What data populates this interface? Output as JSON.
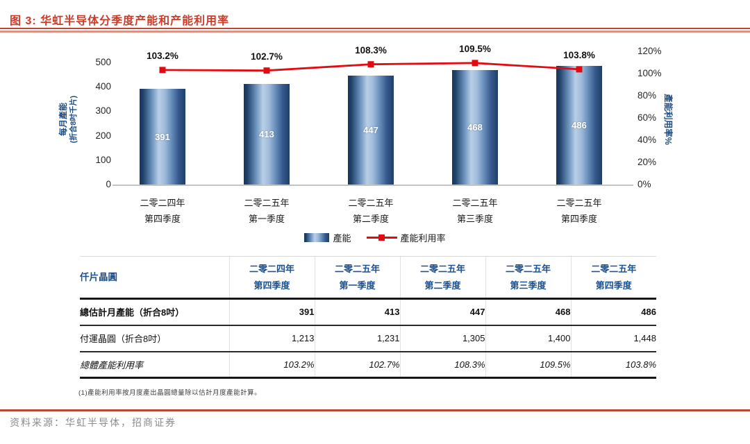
{
  "title": "图 3: 华虹半导体分季度产能和产能利用率",
  "chart_data": {
    "type": "bar",
    "categories": [
      [
        "二零二四年",
        "第四季度"
      ],
      [
        "二零二五年",
        "第一季度"
      ],
      [
        "二零二五年",
        "第二季度"
      ],
      [
        "二零二五年",
        "第三季度"
      ],
      [
        "二零二五年",
        "第四季度"
      ]
    ],
    "series": [
      {
        "name": "產能",
        "type": "bar",
        "axis": "left",
        "values": [
          391,
          413,
          447,
          468,
          486
        ]
      },
      {
        "name": "產能利用率",
        "type": "line",
        "axis": "right",
        "unit": "%",
        "values": [
          103.2,
          102.7,
          108.3,
          109.5,
          103.8
        ],
        "labels": [
          "103.2%",
          "102.7%",
          "108.3%",
          "109.5%",
          "103.8%"
        ]
      }
    ],
    "left_axis": {
      "title_line1": "每月產能",
      "title_line2": "(折合8吋千片)",
      "min": 0,
      "max": 500,
      "step": 100
    },
    "right_axis": {
      "title": "產能利用率%",
      "min": 0,
      "max": 120,
      "step": 20,
      "suffix": "%"
    },
    "grid": false,
    "legend_position": "bottom"
  },
  "legend": {
    "bar_label": "產能",
    "line_label": "產能利用率"
  },
  "colors": {
    "title_red": "#CE3B28",
    "rule_red": "#BC4534",
    "line_red": "#E00C12",
    "bar_edge": "#16365F",
    "bar_highlight": "#B9CFE8",
    "axis_blue": "#1B4D85",
    "table_blue": "#1C5191"
  },
  "table": {
    "corner_label": "仟片晶圓",
    "col_headers": [
      [
        "二零二四年",
        "第四季度"
      ],
      [
        "二零二五年",
        "第一季度"
      ],
      [
        "二零二五年",
        "第二季度"
      ],
      [
        "二零二五年",
        "第三季度"
      ],
      [
        "二零二五年",
        "第四季度"
      ]
    ],
    "rows": [
      {
        "label": "總估計月產能（折合8吋）",
        "values": [
          "391",
          "413",
          "447",
          "468",
          "486"
        ]
      },
      {
        "label": "付運晶圓（折合8吋）",
        "values": [
          "1,213",
          "1,231",
          "1,305",
          "1,400",
          "1,448"
        ]
      },
      {
        "label": "總體產能利用率",
        "values": [
          "103.2%",
          "102.7%",
          "108.3%",
          "109.5%",
          "103.8%"
        ]
      }
    ]
  },
  "footnote": "(1)產能利用率按月度產出晶圓總量除以估計月度產能計算。",
  "source": "资料来源：华虹半导体，招商证券"
}
